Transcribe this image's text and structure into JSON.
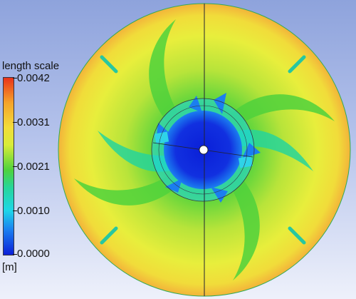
{
  "legend": {
    "title": "length scale",
    "unit": "[m]",
    "ticks": [
      "0.0042",
      "0.0031",
      "0.0021",
      "0.0010",
      "0.0000"
    ]
  },
  "colors": {
    "max": "#e8331a",
    "high": "#f5a32a",
    "mid_high": "#f2dc3a",
    "mid": "#4fd23c",
    "low_mid": "#1ed6e8",
    "min": "#0a1fd8"
  },
  "caption": ""
}
